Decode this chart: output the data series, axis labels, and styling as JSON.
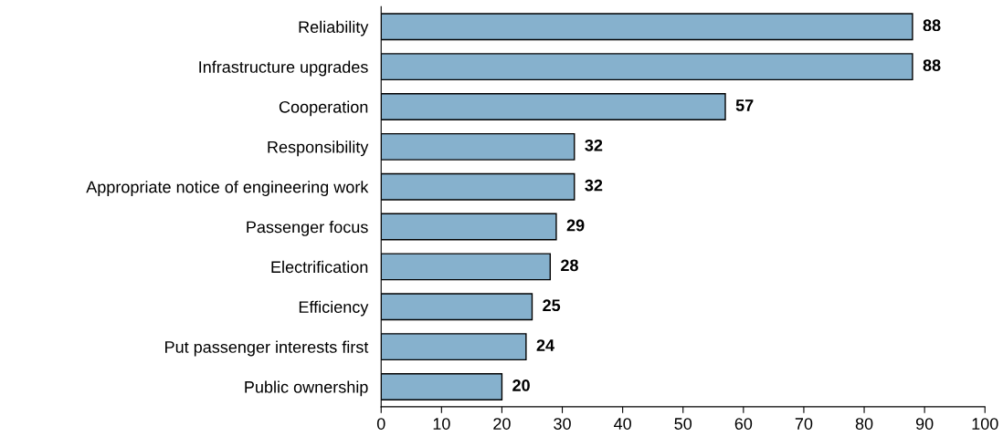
{
  "chart_data": {
    "type": "bar",
    "orientation": "horizontal",
    "categories": [
      "Reliability",
      "Infrastructure upgrades",
      "Cooperation",
      "Responsibility",
      "Appropriate notice of engineering work",
      "Passenger focus",
      "Electrification",
      "Efficiency",
      "Put passenger interests first",
      "Public ownership"
    ],
    "values": [
      88,
      88,
      57,
      32,
      32,
      29,
      28,
      25,
      24,
      20
    ],
    "color": "#86b1cd",
    "data_labels": true,
    "grid": false,
    "legend": false,
    "xlim": [
      0,
      100
    ],
    "xticks": [
      0,
      10,
      20,
      30,
      40,
      50,
      60,
      70,
      80,
      90,
      100
    ]
  }
}
